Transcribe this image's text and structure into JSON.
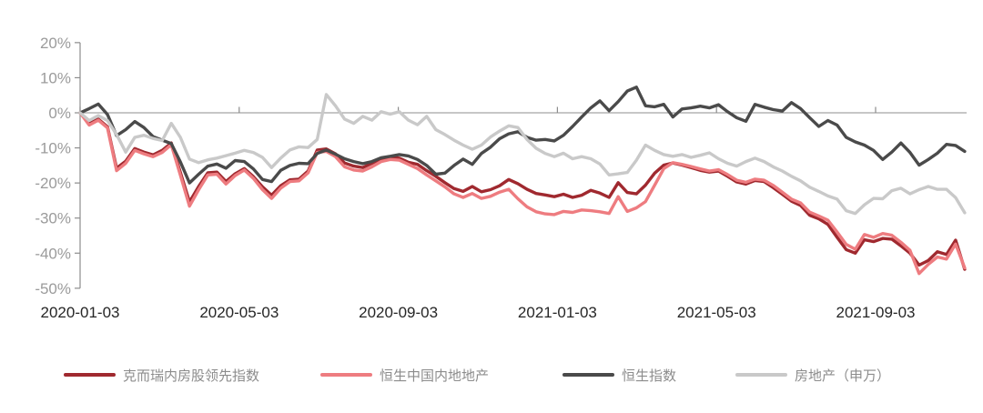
{
  "chart_data": {
    "type": "line",
    "title": "",
    "x_axis": {
      "tick_labels": [
        "2020-01-03",
        "2020-05-03",
        "2020-09-03",
        "2021-01-03",
        "2021-05-03",
        "2021-09-03"
      ],
      "unit": "weekly observations from 2020-01-03 to 2021-11-12"
    },
    "y_axis": {
      "tick_labels": [
        "20%",
        "10%",
        "0%",
        "-10%",
        "-20%",
        "-30%",
        "-40%",
        "-50%"
      ],
      "tick_values": [
        20,
        10,
        0,
        -10,
        -20,
        -30,
        -40,
        -50
      ],
      "max": 20,
      "min": -50,
      "unit": "%"
    },
    "grid": "zero-line-only",
    "legend_position": "bottom",
    "series": [
      {
        "key": "cric-mainland-property-leading-index",
        "name": "克而瑞内房股领先指数",
        "color": "#A0292F",
        "values": [
          0,
          -3.0,
          -1.8,
          -4.0,
          -15.8,
          -13.8,
          -10.2,
          -11.2,
          -12.0,
          -10.7,
          -8.6,
          -17.0,
          -25.4,
          -21.0,
          -17.1,
          -16.9,
          -19.6,
          -17.4,
          -15.9,
          -18.2,
          -21.1,
          -23.5,
          -20.8,
          -19.1,
          -18.9,
          -16.6,
          -10.6,
          -10.3,
          -11.7,
          -14.3,
          -15.2,
          -15.6,
          -14.4,
          -13.1,
          -12.7,
          -12.9,
          -14.1,
          -14.7,
          -16.5,
          -18.1,
          -19.9,
          -21.6,
          -22.4,
          -21.0,
          -22.5,
          -21.9,
          -20.8,
          -19.0,
          -20.2,
          -21.8,
          -23.0,
          -23.4,
          -23.9,
          -23.2,
          -24.1,
          -23.5,
          -22.1,
          -22.9,
          -24.1,
          -19.9,
          -22.7,
          -23.1,
          -20.6,
          -17.2,
          -14.9,
          -14.3,
          -14.9,
          -15.6,
          -16.4,
          -16.9,
          -16.6,
          -18.1,
          -19.7,
          -20.3,
          -19.3,
          -19.6,
          -21.3,
          -23.2,
          -25.2,
          -26.4,
          -29.2,
          -30.2,
          -31.8,
          -35.5,
          -39.0,
          -40.0,
          -36.2,
          -36.7,
          -35.8,
          -36.0,
          -37.9,
          -40.0,
          -43.4,
          -42.1,
          -39.6,
          -40.4,
          -36.3,
          -44.6
        ]
      },
      {
        "key": "hang-seng-mainland-properties",
        "name": "恒生中国内地地产",
        "color": "#EE7C80",
        "values": [
          0,
          -3.5,
          -2.1,
          -4.3,
          -16.5,
          -14.4,
          -10.7,
          -11.7,
          -12.5,
          -11.3,
          -9.1,
          -17.8,
          -26.6,
          -21.9,
          -17.7,
          -17.5,
          -20.3,
          -17.9,
          -16.3,
          -18.7,
          -21.9,
          -24.4,
          -21.5,
          -19.6,
          -19.4,
          -17.1,
          -11.3,
          -11.0,
          -12.5,
          -15.4,
          -16.3,
          -16.6,
          -15.4,
          -13.9,
          -13.3,
          -13.5,
          -14.7,
          -15.9,
          -17.7,
          -19.4,
          -21.1,
          -23.1,
          -24.1,
          -23.0,
          -24.4,
          -23.8,
          -22.6,
          -21.8,
          -24.5,
          -26.8,
          -28.2,
          -28.8,
          -29.0,
          -28.1,
          -28.4,
          -27.7,
          -27.9,
          -28.2,
          -28.7,
          -23.9,
          -28.1,
          -27.1,
          -25.3,
          -20.6,
          -15.9,
          -14.2,
          -14.7,
          -15.3,
          -16.0,
          -16.6,
          -16.2,
          -17.6,
          -19.2,
          -19.8,
          -18.9,
          -19.2,
          -20.7,
          -22.6,
          -24.6,
          -25.7,
          -28.3,
          -29.4,
          -30.6,
          -34.0,
          -37.5,
          -38.9,
          -34.7,
          -35.5,
          -34.4,
          -34.9,
          -36.9,
          -39.2,
          -45.8,
          -43.2,
          -41.1,
          -41.7,
          -37.4,
          -44.2
        ]
      },
      {
        "key": "hang-seng-index",
        "name": "恒生指数",
        "color": "#4A4A4A",
        "values": [
          0,
          1.2,
          2.5,
          -0.5,
          -6.5,
          -4.8,
          -2.5,
          -4.2,
          -6.8,
          -7.8,
          -8.8,
          -14.0,
          -20.0,
          -17.5,
          -15.2,
          -14.6,
          -15.8,
          -13.6,
          -13.9,
          -16.0,
          -19.0,
          -19.6,
          -16.4,
          -15.0,
          -14.4,
          -14.5,
          -11.6,
          -10.6,
          -11.8,
          -13.1,
          -13.9,
          -14.5,
          -13.9,
          -12.8,
          -12.4,
          -11.9,
          -12.3,
          -13.3,
          -15.0,
          -17.5,
          -17.2,
          -15.0,
          -13.2,
          -14.7,
          -11.6,
          -9.8,
          -7.4,
          -6.0,
          -5.4,
          -7.0,
          -7.8,
          -7.6,
          -8.0,
          -6.4,
          -3.9,
          -1.2,
          1.4,
          3.4,
          0.6,
          3.2,
          6.2,
          7.3,
          2.0,
          1.7,
          2.4,
          -1.2,
          1.1,
          1.4,
          1.9,
          1.4,
          2.3,
          0.3,
          -1.4,
          -2.4,
          2.4,
          1.6,
          0.9,
          0.5,
          2.9,
          1.2,
          -1.4,
          -3.9,
          -2.2,
          -3.5,
          -7.0,
          -8.3,
          -9.2,
          -10.7,
          -13.3,
          -11.2,
          -8.6,
          -11.3,
          -14.9,
          -13.3,
          -11.5,
          -9.0,
          -9.3,
          -11.0
        ]
      },
      {
        "key": "real-estate-shenwan",
        "name": "房地产（申万）",
        "color": "#C9C9C9",
        "values": [
          0,
          -2.2,
          -0.8,
          -2.2,
          -6.2,
          -11.2,
          -7.0,
          -6.4,
          -7.3,
          -7.9,
          -3.0,
          -7.0,
          -13.2,
          -14.2,
          -13.4,
          -12.9,
          -12.2,
          -11.5,
          -10.7,
          -11.3,
          -12.7,
          -15.6,
          -12.9,
          -10.6,
          -9.7,
          -9.9,
          -7.6,
          5.2,
          2.0,
          -1.8,
          -3.0,
          -1.0,
          -2.1,
          0.3,
          -0.4,
          0.3,
          -2.1,
          -3.4,
          -1.0,
          -4.8,
          -6.2,
          -7.8,
          -9.2,
          -10.4,
          -9.2,
          -6.9,
          -5.2,
          -3.7,
          -4.2,
          -7.6,
          -10.1,
          -11.6,
          -12.5,
          -11.5,
          -13.1,
          -12.5,
          -13.1,
          -14.6,
          -17.7,
          -17.4,
          -17.0,
          -13.5,
          -9.2,
          -10.7,
          -11.9,
          -12.4,
          -11.9,
          -12.7,
          -12.1,
          -11.4,
          -13.1,
          -14.4,
          -15.2,
          -13.9,
          -12.9,
          -13.9,
          -15.4,
          -16.6,
          -18.1,
          -19.4,
          -21.2,
          -22.4,
          -23.7,
          -24.6,
          -27.9,
          -28.7,
          -26.2,
          -24.4,
          -24.5,
          -22.2,
          -21.5,
          -23.1,
          -21.9,
          -21.0,
          -21.8,
          -21.8,
          -24.2,
          -28.5
        ]
      }
    ]
  },
  "legend": {
    "items": [
      "克而瑞内房股领先指数",
      "恒生中国内地地产",
      "恒生指数",
      "房地产（申万）"
    ]
  },
  "colors": {
    "axis": "#8c8c8c",
    "y_label": "#9b9b9b",
    "x_label": "#262626",
    "legend_text": "#8c8c8c",
    "background": "#ffffff"
  }
}
